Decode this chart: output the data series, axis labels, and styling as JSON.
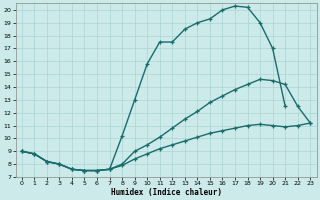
{
  "xlabel": "Humidex (Indice chaleur)",
  "bg_color": "#cceaea",
  "line_color": "#1a6b6b",
  "grid_color": "#aad4d4",
  "xlim": [
    -0.5,
    23.5
  ],
  "ylim": [
    7,
    20.5
  ],
  "xticks": [
    0,
    1,
    2,
    3,
    4,
    5,
    6,
    7,
    8,
    9,
    10,
    11,
    12,
    13,
    14,
    15,
    16,
    17,
    18,
    19,
    20,
    21,
    22,
    23
  ],
  "yticks": [
    7,
    8,
    9,
    10,
    11,
    12,
    13,
    14,
    15,
    16,
    17,
    18,
    19,
    20
  ],
  "curve_top_x": [
    0,
    1,
    2,
    3,
    4,
    5,
    6,
    7,
    8,
    9,
    10,
    11,
    12,
    13,
    14,
    15,
    16,
    17,
    18,
    19,
    20,
    21
  ],
  "curve_top_y": [
    9.0,
    8.8,
    8.2,
    8.0,
    7.6,
    7.5,
    7.5,
    7.6,
    10.2,
    13.0,
    15.8,
    17.5,
    17.5,
    18.5,
    19.0,
    19.3,
    20.0,
    20.3,
    20.2,
    19.0,
    17.0,
    12.5
  ],
  "curve_mid_x": [
    0,
    1,
    2,
    3,
    4,
    5,
    6,
    7,
    8,
    9,
    10,
    11,
    12,
    13,
    14,
    15,
    16,
    17,
    18,
    19,
    20,
    21,
    22,
    23
  ],
  "curve_mid_y": [
    9.0,
    8.8,
    8.2,
    8.0,
    7.6,
    7.5,
    7.5,
    7.6,
    8.0,
    9.0,
    9.5,
    10.1,
    10.8,
    11.5,
    12.1,
    12.8,
    13.3,
    13.8,
    14.2,
    14.6,
    14.5,
    14.2,
    12.5,
    11.2
  ],
  "curve_bot_x": [
    0,
    1,
    2,
    3,
    4,
    5,
    6,
    7,
    8,
    9,
    10,
    11,
    12,
    13,
    14,
    15,
    16,
    17,
    18,
    19,
    20,
    21,
    22,
    23
  ],
  "curve_bot_y": [
    9.0,
    8.8,
    8.2,
    8.0,
    7.6,
    7.5,
    7.5,
    7.6,
    7.9,
    8.4,
    8.8,
    9.2,
    9.5,
    9.8,
    10.1,
    10.4,
    10.6,
    10.8,
    11.0,
    11.1,
    11.0,
    10.9,
    11.0,
    11.2
  ],
  "marker": "+",
  "markersize": 3.5,
  "markeredgewidth": 0.9,
  "linewidth": 1.0
}
